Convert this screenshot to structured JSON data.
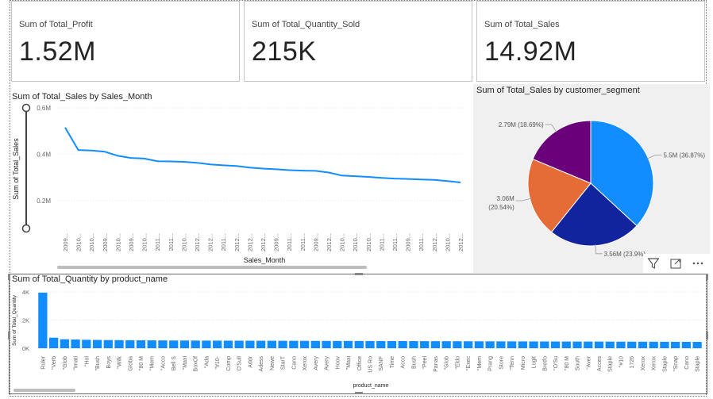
{
  "cards": [
    {
      "label": "Sum of Total_Profit",
      "value": "1.52M"
    },
    {
      "label": "Sum of Total_Quantity_Sold",
      "value": "215K"
    },
    {
      "label": "Sum of Total_Sales",
      "value": "14.92M"
    }
  ],
  "colors": {
    "accent": "#118dff",
    "pie_blue": "#118dff",
    "pie_navy": "#12239e",
    "pie_orange": "#e66c37",
    "pie_purple": "#6b007b"
  },
  "icons": [
    "filter-icon",
    "focus-mode-icon",
    "more-options-icon"
  ],
  "chart_data": [
    {
      "type": "line",
      "title": "Sum of Total_Sales by Sales_Month",
      "xlabel": "Sales_Month",
      "ylabel": "Sum of Total_Sales",
      "ylim": [
        0.1,
        0.6
      ],
      "ytick_values": [
        0.2,
        0.4,
        0.6
      ],
      "yticks": [
        "0.2M",
        "0.4M",
        "0.6M"
      ],
      "grid": true,
      "categories": [
        "2009...",
        "2010...",
        "2010...",
        "2009...",
        "2010...",
        "2009...",
        "2010...",
        "2011...",
        "2011...",
        "2010...",
        "2012...",
        "2012...",
        "2011...",
        "2012...",
        "2012...",
        "2012...",
        "2009...",
        "2011...",
        "2011...",
        "2009...",
        "2012...",
        "2010...",
        "2010...",
        "2010...",
        "2011...",
        "2011...",
        "2009...",
        "2011...",
        "2012...",
        "2010...",
        "2012..."
      ],
      "values": [
        0.515,
        0.418,
        0.416,
        0.411,
        0.393,
        0.384,
        0.381,
        0.37,
        0.369,
        0.367,
        0.363,
        0.356,
        0.352,
        0.349,
        0.342,
        0.338,
        0.335,
        0.331,
        0.329,
        0.328,
        0.321,
        0.308,
        0.305,
        0.302,
        0.298,
        0.295,
        0.293,
        0.291,
        0.289,
        0.284,
        0.278
      ]
    },
    {
      "type": "pie",
      "title": "Sum of Total_Sales by customer_segment",
      "slices": [
        {
          "value": 5.5,
          "percent": 36.87,
          "label": "5.5M (36.87%)",
          "color": "#118dff"
        },
        {
          "value": 3.56,
          "percent": 23.9,
          "label": "3.56M (23.9%)",
          "color": "#12239e"
        },
        {
          "value": 3.06,
          "percent": 20.54,
          "label_line1": "3.06M",
          "label_line2": "(20.54%)",
          "color": "#e66c37"
        },
        {
          "value": 2.79,
          "percent": 18.69,
          "label": "2.79M (18.69%)",
          "color": "#6b007b"
        }
      ]
    },
    {
      "type": "bar",
      "title": "Sum of Total_Quantity by product_name",
      "xlabel": "product_name",
      "ylabel": "Sum of Total_Quantity",
      "ylim": [
        0,
        4000
      ],
      "ytick_values": [
        0,
        2000,
        4000
      ],
      "yticks": [
        "0K",
        "2K",
        "4K"
      ],
      "categories": [
        "Ruler",
        "\"Verb",
        "\"Glob",
        "\"Imati",
        "\"Hol",
        "\"Bush",
        "Boys",
        "\"Wilk",
        "Globa",
        "\"80 M",
        "\"Mem",
        "\"Acco",
        "Bell S",
        "\"Maxi",
        "BoxOf",
        "\"Ada",
        "\"#10-",
        "Comp",
        "O'Sull",
        "Addr",
        "Adess",
        "Newe",
        "StarT",
        "Cano",
        "Xerox",
        "Avery",
        "Avery",
        "Hoov",
        "\"Maxi",
        "Office",
        "US Ro",
        "SANF",
        "Time",
        "Acco",
        "Bush",
        "\"Peel",
        "Panas",
        "\"Glob",
        "\"Eldo",
        "\"Exec",
        "\"Mem",
        "Prang",
        "Store",
        "\"Tenn",
        "Micro",
        "Logit",
        "Bretfo",
        "\"O'Su",
        "\"80 M",
        "South",
        "\"Aver",
        "Acces",
        "Staple",
        "\"#10",
        "1726",
        "Xerox",
        "Xerox",
        "Staple",
        "\"Snap",
        "Cano",
        "Staple"
      ],
      "values": [
        3950,
        750,
        640,
        620,
        600,
        590,
        580,
        575,
        570,
        565,
        560,
        555,
        550,
        548,
        545,
        542,
        540,
        538,
        536,
        534,
        532,
        530,
        528,
        526,
        524,
        522,
        520,
        518,
        516,
        514,
        512,
        510,
        508,
        506,
        504,
        502,
        500,
        498,
        496,
        494,
        492,
        490,
        488,
        486,
        484,
        482,
        480,
        478,
        476,
        474,
        472,
        470,
        468,
        466,
        464,
        462,
        460,
        458,
        456,
        454,
        452
      ]
    }
  ]
}
